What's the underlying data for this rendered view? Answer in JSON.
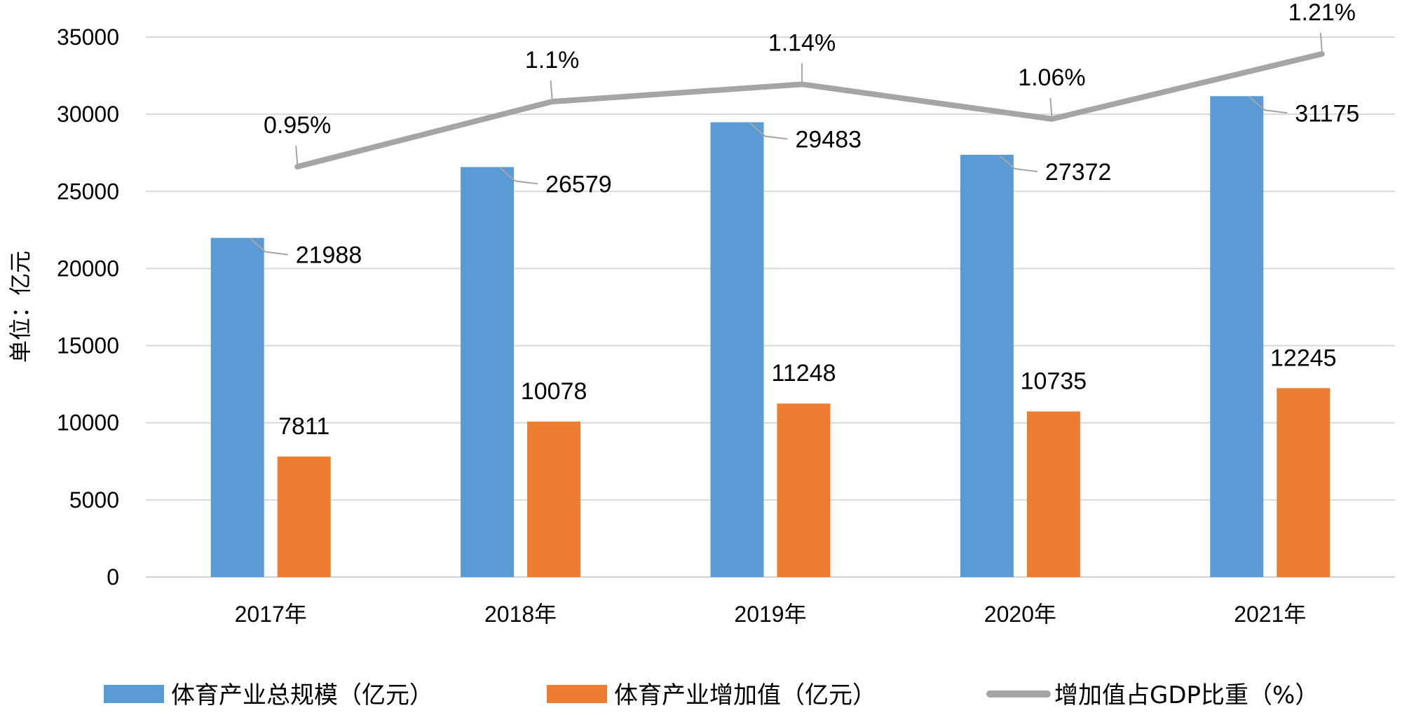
{
  "chart_data": {
    "type": "bar",
    "categories": [
      "2017年",
      "2018年",
      "2019年",
      "2020年",
      "2021年"
    ],
    "ylabel": "单位：亿元",
    "ylim": [
      0,
      35000
    ],
    "yticks": [
      0,
      5000,
      10000,
      15000,
      20000,
      25000,
      30000,
      35000
    ],
    "grid": true,
    "legend_position": "bottom",
    "series": [
      {
        "name": "体育产业总规模（亿元）",
        "kind": "bar",
        "color": "#5B9BD5",
        "values": [
          21988,
          26579,
          29483,
          27372,
          31175
        ],
        "labels": [
          "21988",
          "26579",
          "29483",
          "27372",
          "31175"
        ]
      },
      {
        "name": "体育产业增加值（亿元）",
        "kind": "bar",
        "color": "#ED7D31",
        "values": [
          7811,
          10078,
          11248,
          10735,
          12245
        ],
        "labels": [
          "7811",
          "10078",
          "11248",
          "10735",
          "12245"
        ]
      },
      {
        "name": "增加值占GDP比重（%）",
        "kind": "line",
        "color": "#A5A5A5",
        "values": [
          0.95,
          1.1,
          1.14,
          1.06,
          1.21
        ],
        "labels": [
          "0.95%",
          "1.1%",
          "1.14%",
          "1.06%",
          "1.21%"
        ]
      }
    ]
  }
}
